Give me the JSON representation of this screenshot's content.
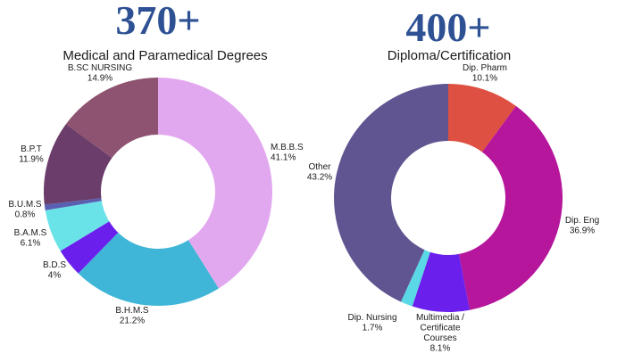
{
  "chart_data": [
    {
      "type": "donut",
      "count": "370+",
      "title": "Medical and Paramedical Degrees",
      "categories": [
        "M.B.B.S",
        "B.H.M.S",
        "B.D.S",
        "B.A.M.S",
        "B.U.M.S",
        "B.P.T",
        "B.SC NURSING"
      ],
      "values": [
        41.1,
        21.2,
        4,
        6.1,
        0.8,
        11.9,
        14.9
      ],
      "value_labels": [
        "41.1%",
        "21.2%",
        "4%",
        "6.1%",
        "0.8%",
        "11.9%",
        "14.9%"
      ],
      "colors": [
        "#e2a8ef",
        "#3fb6d7",
        "#6a1fec",
        "#6ae3e8",
        "#5a5fb2",
        "#6b3d6a",
        "#8e5370"
      ],
      "start_angle_deg": 0,
      "direction": "clockwise"
    },
    {
      "type": "donut",
      "count": "400+",
      "title": "Diploma/Certification",
      "categories": [
        "Dip. Pharm",
        "Dip. Eng",
        "Multimedia / Certificate Courses",
        "Dip. Nursing",
        "Other"
      ],
      "label_lines": [
        [
          "Dip. Pharm"
        ],
        [
          "Dip. Eng"
        ],
        [
          "Multimedia /",
          "Certificate",
          "Courses"
        ],
        [
          "Dip. Nursing"
        ],
        [
          "Other"
        ]
      ],
      "values": [
        10.1,
        36.9,
        8.1,
        1.7,
        43.2
      ],
      "value_labels": [
        "10.1%",
        "36.9%",
        "8.1%",
        "1.7%",
        "43.2%"
      ],
      "colors": [
        "#de5041",
        "#b5169c",
        "#6a1fec",
        "#5ad8e5",
        "#605591"
      ],
      "start_angle_deg": 0,
      "direction": "clockwise"
    }
  ]
}
